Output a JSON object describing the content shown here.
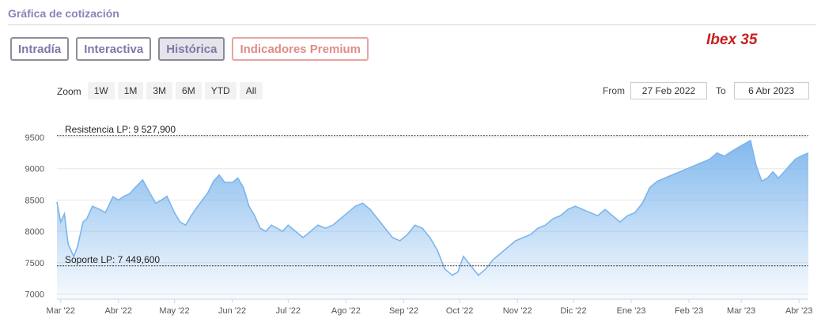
{
  "header": {
    "section_title": "Gráfica de cotización"
  },
  "tabs": [
    {
      "label": "Intradía",
      "active": false
    },
    {
      "label": "Interactiva",
      "active": false
    },
    {
      "label": "Histórica",
      "active": true
    },
    {
      "label": "Indicadores Premium",
      "active": false,
      "premium": true
    }
  ],
  "badge": {
    "title": "Ibex 35",
    "color": "#c8201e"
  },
  "zoom": {
    "label": "Zoom",
    "buttons": [
      "1W",
      "1M",
      "3M",
      "6M",
      "YTD",
      "All"
    ]
  },
  "date_range": {
    "from_label": "From",
    "from_value": "27 Feb 2022",
    "to_label": "To",
    "to_value": "6 Abr 2023"
  },
  "chart_data": {
    "type": "area",
    "title": "",
    "xlabel": "",
    "ylabel": "",
    "ylim": [
      7000,
      9500
    ],
    "yticks": [
      7000,
      7500,
      8000,
      8500,
      9000,
      9500
    ],
    "x_tick_labels": [
      "Mar '22",
      "Abr '22",
      "May '22",
      "Jun '22",
      "Jul '22",
      "Ago '22",
      "Sep '22",
      "Oct '22",
      "Nov '22",
      "Dic '22",
      "Ene '23",
      "Feb '23",
      "Mar '23",
      "Abr '23"
    ],
    "grid": true,
    "line_color": "#7cb5ec",
    "reference_lines": [
      {
        "label": "Resistencia LP: 9 527,900",
        "value": 9527.9
      },
      {
        "label": "Soporte LP: 7 449,600",
        "value": 7449.6
      }
    ],
    "series": [
      {
        "x": [
          "2022-02-27",
          "2022-03-01",
          "2022-03-03",
          "2022-03-05",
          "2022-03-08",
          "2022-03-10",
          "2022-03-13",
          "2022-03-15",
          "2022-03-18",
          "2022-03-22",
          "2022-03-25",
          "2022-03-29",
          "2022-04-01",
          "2022-04-04",
          "2022-04-07",
          "2022-04-10",
          "2022-04-14",
          "2022-04-18",
          "2022-04-21",
          "2022-04-24",
          "2022-04-27",
          "2022-05-01",
          "2022-05-04",
          "2022-05-07",
          "2022-05-10",
          "2022-05-13",
          "2022-05-16",
          "2022-05-19",
          "2022-05-22",
          "2022-05-25",
          "2022-05-28",
          "2022-06-01",
          "2022-06-04",
          "2022-06-07",
          "2022-06-10",
          "2022-06-13",
          "2022-06-16",
          "2022-06-19",
          "2022-06-22",
          "2022-06-25",
          "2022-06-28",
          "2022-07-01",
          "2022-07-05",
          "2022-07-09",
          "2022-07-13",
          "2022-07-17",
          "2022-07-21",
          "2022-07-25",
          "2022-07-29",
          "2022-08-02",
          "2022-08-06",
          "2022-08-10",
          "2022-08-14",
          "2022-08-18",
          "2022-08-22",
          "2022-08-26",
          "2022-08-30",
          "2022-09-03",
          "2022-09-07",
          "2022-09-11",
          "2022-09-15",
          "2022-09-19",
          "2022-09-23",
          "2022-09-27",
          "2022-09-30",
          "2022-10-03",
          "2022-10-07",
          "2022-10-11",
          "2022-10-15",
          "2022-10-19",
          "2022-10-23",
          "2022-10-27",
          "2022-10-31",
          "2022-11-04",
          "2022-11-08",
          "2022-11-12",
          "2022-11-16",
          "2022-11-20",
          "2022-11-24",
          "2022-11-28",
          "2022-12-02",
          "2022-12-06",
          "2022-12-10",
          "2022-12-14",
          "2022-12-18",
          "2022-12-22",
          "2022-12-26",
          "2022-12-30",
          "2023-01-03",
          "2023-01-07",
          "2023-01-11",
          "2023-01-15",
          "2023-01-19",
          "2023-01-23",
          "2023-01-27",
          "2023-01-31",
          "2023-02-04",
          "2023-02-08",
          "2023-02-12",
          "2023-02-16",
          "2023-02-20",
          "2023-02-24",
          "2023-02-28",
          "2023-03-03",
          "2023-03-06",
          "2023-03-09",
          "2023-03-12",
          "2023-03-15",
          "2023-03-18",
          "2023-03-21",
          "2023-03-24",
          "2023-03-27",
          "2023-03-30",
          "2023-04-02",
          "2023-04-06"
        ],
        "values": [
          8470,
          8150,
          8280,
          7800,
          7600,
          7750,
          8150,
          8200,
          8400,
          8350,
          8300,
          8550,
          8500,
          8560,
          8600,
          8700,
          8820,
          8600,
          8450,
          8500,
          8560,
          8300,
          8150,
          8100,
          8250,
          8380,
          8500,
          8620,
          8800,
          8900,
          8780,
          8780,
          8850,
          8700,
          8400,
          8250,
          8050,
          8000,
          8100,
          8050,
          8000,
          8100,
          8000,
          7900,
          8000,
          8100,
          8050,
          8100,
          8200,
          8300,
          8400,
          8450,
          8350,
          8200,
          8050,
          7900,
          7850,
          7950,
          8100,
          8050,
          7900,
          7700,
          7400,
          7300,
          7350,
          7600,
          7450,
          7300,
          7400,
          7550,
          7650,
          7750,
          7850,
          7900,
          7950,
          8050,
          8100,
          8200,
          8250,
          8350,
          8400,
          8350,
          8300,
          8250,
          8350,
          8250,
          8150,
          8250,
          8300,
          8450,
          8700,
          8800,
          8850,
          8900,
          8950,
          9000,
          9050,
          9100,
          9150,
          9250,
          9200,
          9280,
          9350,
          9400,
          9450,
          9050,
          8800,
          8850,
          8950,
          8850,
          8950,
          9050,
          9150,
          9200,
          9250
        ]
      }
    ]
  }
}
